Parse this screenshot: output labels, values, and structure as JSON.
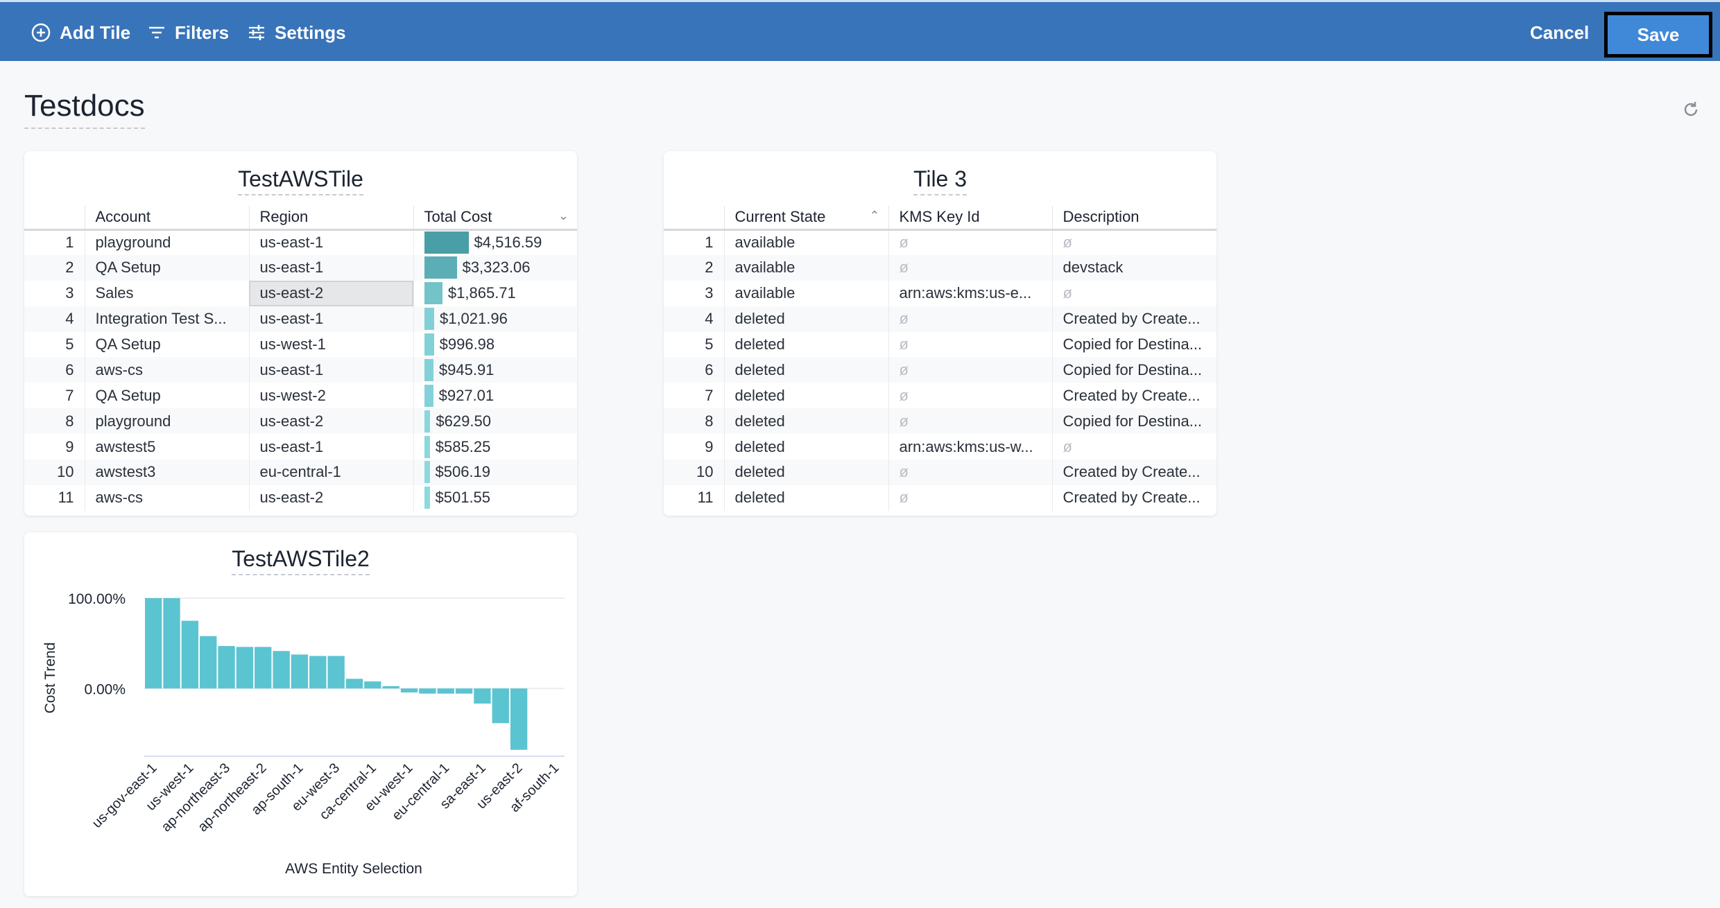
{
  "toolbar": {
    "add_tile": "Add Tile",
    "filters": "Filters",
    "settings": "Settings",
    "cancel": "Cancel",
    "save": "Save",
    "icons": [
      "plus-circle-icon",
      "filter-icon",
      "sliders-icon"
    ]
  },
  "page": {
    "title": "Testdocs",
    "refresh_icon": "refresh-icon"
  },
  "colors": {
    "header": "#3874ba",
    "save": "#4088d8",
    "bar": "#5bc4d1"
  },
  "tile1": {
    "title": "TestAWSTile",
    "columns": [
      "Account",
      "Region",
      "Total Cost"
    ],
    "sort": "Total Cost descending",
    "rows": [
      {
        "n": "1",
        "account": "playground",
        "region": "us-east-1",
        "cost": "$4,516.59",
        "value": 4516.59
      },
      {
        "n": "2",
        "account": "QA Setup",
        "region": "us-east-1",
        "cost": "$3,323.06",
        "value": 3323.06
      },
      {
        "n": "3",
        "account": "Sales",
        "region": "us-east-2",
        "cost": "$1,865.71",
        "value": 1865.71
      },
      {
        "n": "4",
        "account": "Integration Test S...",
        "region": "us-east-1",
        "cost": "$1,021.96",
        "value": 1021.96
      },
      {
        "n": "5",
        "account": "QA Setup",
        "region": "us-west-1",
        "cost": "$996.98",
        "value": 996.98
      },
      {
        "n": "6",
        "account": "aws-cs",
        "region": "us-east-1",
        "cost": "$945.91",
        "value": 945.91
      },
      {
        "n": "7",
        "account": "QA Setup",
        "region": "us-west-2",
        "cost": "$927.01",
        "value": 927.01
      },
      {
        "n": "8",
        "account": "playground",
        "region": "us-east-2",
        "cost": "$629.50",
        "value": 629.5
      },
      {
        "n": "9",
        "account": "awstest5",
        "region": "us-east-1",
        "cost": "$585.25",
        "value": 585.25
      },
      {
        "n": "10",
        "account": "awstest3",
        "region": "eu-central-1",
        "cost": "$506.19",
        "value": 506.19
      },
      {
        "n": "11",
        "account": "aws-cs",
        "region": "us-east-2",
        "cost": "$501.55",
        "value": 501.55
      }
    ]
  },
  "tile3": {
    "title": "Tile 3",
    "columns": [
      "Current State",
      "KMS Key Id",
      "Description"
    ],
    "sort": "Current State ascending",
    "null_glyph": "ø",
    "rows": [
      {
        "n": "1",
        "state": "available",
        "kms": null,
        "desc": null
      },
      {
        "n": "2",
        "state": "available",
        "kms": null,
        "desc": "devstack"
      },
      {
        "n": "3",
        "state": "available",
        "kms": "arn:aws:kms:us-e...",
        "desc": null
      },
      {
        "n": "4",
        "state": "deleted",
        "kms": null,
        "desc": "Created by Create..."
      },
      {
        "n": "5",
        "state": "deleted",
        "kms": null,
        "desc": "Copied for Destina..."
      },
      {
        "n": "6",
        "state": "deleted",
        "kms": null,
        "desc": "Copied for Destina..."
      },
      {
        "n": "7",
        "state": "deleted",
        "kms": null,
        "desc": "Created by Create..."
      },
      {
        "n": "8",
        "state": "deleted",
        "kms": null,
        "desc": "Copied for Destina..."
      },
      {
        "n": "9",
        "state": "deleted",
        "kms": "arn:aws:kms:us-w...",
        "desc": null
      },
      {
        "n": "10",
        "state": "deleted",
        "kms": null,
        "desc": "Created by Create..."
      },
      {
        "n": "11",
        "state": "deleted",
        "kms": null,
        "desc": "Created by Create..."
      }
    ]
  },
  "tile2": {
    "title": "TestAWSTile2"
  },
  "chart_data": {
    "type": "bar",
    "xlabel": "AWS Entity Selection",
    "ylabel": "Cost Trend",
    "yticks": [
      "100.00%",
      "0.00%"
    ],
    "ylim": [
      -75,
      100
    ],
    "grid": true,
    "tick_labels": [
      "us-gov-east-1",
      "us-west-1",
      "ap-northeast-3",
      "ap-northeast-2",
      "ap-south-1",
      "eu-west-3",
      "ca-central-1",
      "eu-west-1",
      "eu-central-1",
      "sa-east-1",
      "us-east-2",
      "af-south-1"
    ],
    "values": [
      100,
      100,
      75,
      58,
      47,
      46,
      46,
      41.5,
      37.6,
      36,
      36,
      10.7,
      7.8,
      2.6,
      -4.4,
      -5.7,
      -5.7,
      -5.7,
      -16.7,
      -38.4,
      -67.9,
      0,
      0
    ]
  }
}
